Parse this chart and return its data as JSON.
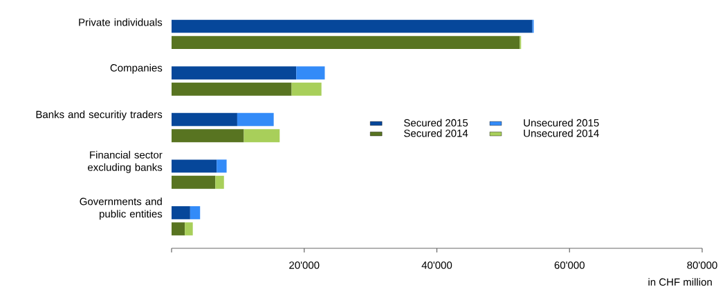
{
  "chart_data": {
    "type": "bar",
    "orientation": "horizontal",
    "stacked": true,
    "categories": [
      "Private individuals",
      null,
      "Companies",
      null,
      "Banks and securitiy traders",
      null,
      "Financial sector excluding banks",
      null,
      "Governments and public entities",
      null
    ],
    "series": [
      {
        "name": "Secured 2015",
        "color": "#06479a",
        "values": [
          54400,
          null,
          18800,
          null,
          9900,
          null,
          6800,
          null,
          2800,
          null
        ]
      },
      {
        "name": "Unsecured 2015",
        "color": "#338bf8",
        "values": [
          200,
          null,
          4300,
          null,
          5500,
          null,
          1500,
          null,
          1500,
          null
        ]
      },
      {
        "name": "Secured 2014",
        "color": "#587421",
        "values": [
          null,
          52500,
          null,
          18100,
          null,
          10900,
          null,
          6600,
          null,
          2000
        ]
      },
      {
        "name": "Unsecured 2014",
        "color": "#a8cf5a",
        "values": [
          null,
          200,
          null,
          4500,
          null,
          5400,
          null,
          1300,
          null,
          1200
        ]
      }
    ],
    "xlabel": "in CHF million",
    "xlim": [
      0,
      80000
    ],
    "xticks": [
      {
        "value": 0,
        "label": null
      },
      {
        "value": 20000,
        "label": "20'000"
      },
      {
        "value": 40000,
        "label": "40'000"
      },
      {
        "value": 60000,
        "label": "60'000"
      },
      {
        "value": 80000,
        "label": "80'000"
      }
    ],
    "legend": "right",
    "grid": false
  }
}
